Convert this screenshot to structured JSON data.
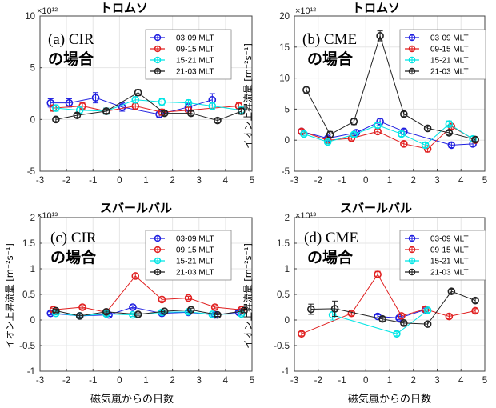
{
  "figure": {
    "xlabel": "磁気嵐からの日数",
    "ylabel": "イオン上昇流量 [m⁻²s⁻¹]",
    "legend": [
      "03-09 MLT",
      "09-15 MLT",
      "15-21 MLT",
      "21-03 MLT"
    ],
    "colors": [
      "#1f1fe0",
      "#e02020",
      "#00e5e5",
      "#222222"
    ]
  },
  "chart_data": [
    {
      "type": "line",
      "title": "トロムソ",
      "label": "(a) CIR",
      "sublabel": "の場合",
      "exponent": "×10¹²",
      "xlim": [
        -3,
        5
      ],
      "ylim": [
        -5,
        10
      ],
      "xticks": [
        -3,
        -2,
        -1,
        0,
        1,
        2,
        3,
        4,
        5
      ],
      "yticks": [
        -5,
        0,
        5,
        10
      ],
      "series": [
        {
          "name": "03-09 MLT",
          "points": [
            [
              -2.6,
              1.6
            ],
            [
              -1.9,
              1.6
            ],
            [
              -0.9,
              2.1
            ],
            [
              0.1,
              1.2
            ],
            [
              1.5,
              0.5
            ],
            [
              2.6,
              1.2
            ],
            [
              3.5,
              1.9
            ]
          ],
          "err": [
            0.4,
            0.4,
            0.5,
            0.4,
            0.3,
            0.4,
            0.6
          ]
        },
        {
          "name": "09-15 MLT",
          "points": [
            [
              -2.5,
              1.1
            ],
            [
              -1.4,
              1.3
            ],
            [
              -0.5,
              0.8
            ],
            [
              0.6,
              1.3
            ],
            [
              1.6,
              0.7
            ],
            [
              2.6,
              0.9
            ],
            [
              4.5,
              1.3
            ]
          ],
          "err": [
            0.3,
            0.3,
            0.3,
            0.3,
            0.3,
            0.3,
            0.3
          ]
        },
        {
          "name": "15-21 MLT",
          "points": [
            [
              -2.4,
              1.1
            ],
            [
              -1.5,
              0.9
            ],
            [
              -0.5,
              0.8
            ],
            [
              0.6,
              1.9
            ],
            [
              1.6,
              1.7
            ],
            [
              2.6,
              1.6
            ],
            [
              3.5,
              1.3
            ],
            [
              4.6,
              0.9
            ]
          ],
          "err": [
            0.3,
            0.3,
            0.3,
            0.3,
            0.3,
            0.3,
            0.3,
            0.3
          ]
        },
        {
          "name": "21-03 MLT",
          "points": [
            [
              -2.4,
              0.0
            ],
            [
              -1.6,
              0.4
            ],
            [
              -0.5,
              0.8
            ],
            [
              0.7,
              2.6
            ],
            [
              1.7,
              0.6
            ],
            [
              2.7,
              0.6
            ],
            [
              3.7,
              -0.1
            ],
            [
              4.6,
              0.8
            ]
          ],
          "err": [
            0.2,
            0.2,
            0.2,
            0.3,
            0.2,
            0.2,
            0.2,
            0.3
          ]
        }
      ]
    },
    {
      "type": "line",
      "title": "トロムソ",
      "label": "(b) CME",
      "sublabel": "の場合",
      "exponent": "×10¹²",
      "xlim": [
        -3,
        5
      ],
      "ylim": [
        -5,
        20
      ],
      "xticks": [
        -3,
        -2,
        -1,
        0,
        1,
        2,
        3,
        4,
        5
      ],
      "yticks": [
        -5,
        0,
        5,
        10,
        15,
        20
      ],
      "series": [
        {
          "name": "03-09 MLT",
          "points": [
            [
              -2.7,
              1.4
            ],
            [
              -1.6,
              0.3
            ],
            [
              -0.4,
              1.2
            ],
            [
              0.6,
              3.0
            ],
            [
              1.6,
              1.4
            ],
            [
              3.6,
              -0.8
            ],
            [
              4.5,
              -0.6
            ]
          ],
          "err": [
            0.3,
            0.3,
            0.4,
            0.5,
            0.4,
            0.4,
            0.4
          ]
        },
        {
          "name": "09-15 MLT",
          "points": [
            [
              -2.7,
              1.4
            ],
            [
              -1.6,
              0.0
            ],
            [
              -0.6,
              0.3
            ],
            [
              0.5,
              1.4
            ],
            [
              1.6,
              -0.6
            ],
            [
              2.6,
              -1.4
            ],
            [
              3.6,
              2.2
            ],
            [
              4.6,
              0.0
            ]
          ],
          "err": [
            0.3,
            0.3,
            0.3,
            0.4,
            0.4,
            0.5,
            0.4,
            0.4
          ]
        },
        {
          "name": "15-21 MLT",
          "points": [
            [
              -2.6,
              1.0
            ],
            [
              -1.6,
              -0.3
            ],
            [
              -0.5,
              0.9
            ],
            [
              0.5,
              2.4
            ],
            [
              1.5,
              1.0
            ],
            [
              2.5,
              -0.8
            ],
            [
              3.5,
              2.6
            ],
            [
              4.5,
              0.2
            ]
          ],
          "err": [
            0.3,
            0.3,
            0.3,
            0.4,
            0.4,
            0.4,
            0.5,
            0.4
          ]
        },
        {
          "name": "21-03 MLT",
          "points": [
            [
              -2.5,
              8.1
            ],
            [
              -1.5,
              0.9
            ],
            [
              -0.5,
              3.0
            ],
            [
              0.6,
              16.8
            ],
            [
              1.6,
              4.2
            ],
            [
              2.6,
              1.9
            ],
            [
              3.5,
              1.2
            ],
            [
              4.6,
              0.1
            ]
          ],
          "err": [
            0.6,
            0.5,
            0.5,
            0.8,
            0.4,
            0.3,
            0.3,
            0.3
          ]
        }
      ]
    },
    {
      "type": "line",
      "title": "スバールバル",
      "label": "(c) CIR",
      "sublabel": "の場合",
      "exponent": "×10¹³",
      "xlim": [
        -3,
        5
      ],
      "ylim": [
        -1,
        2
      ],
      "xticks": [
        -3,
        -2,
        -1,
        0,
        1,
        2,
        3,
        4,
        5
      ],
      "yticks": [
        -1,
        -0.5,
        0,
        0.5,
        1,
        1.5,
        2
      ],
      "series": [
        {
          "name": "03-09 MLT",
          "points": [
            [
              -2.6,
              0.13
            ],
            [
              -1.5,
              0.08
            ],
            [
              -0.4,
              0.1
            ],
            [
              0.5,
              0.25
            ],
            [
              1.6,
              0.13
            ],
            [
              2.6,
              0.15
            ],
            [
              3.6,
              0.1
            ],
            [
              4.5,
              0.15
            ]
          ],
          "err": [
            0.03,
            0.03,
            0.03,
            0.03,
            0.03,
            0.03,
            0.03,
            0.03
          ]
        },
        {
          "name": "09-15 MLT",
          "points": [
            [
              -2.5,
              0.2
            ],
            [
              -1.4,
              0.25
            ],
            [
              -0.5,
              0.15
            ],
            [
              0.6,
              0.86
            ],
            [
              1.6,
              0.4
            ],
            [
              2.6,
              0.43
            ],
            [
              3.6,
              0.25
            ],
            [
              4.6,
              0.2
            ]
          ],
          "err": [
            0.03,
            0.03,
            0.03,
            0.04,
            0.03,
            0.03,
            0.03,
            0.03
          ]
        },
        {
          "name": "15-21 MLT",
          "points": [
            [
              -2.4,
              0.13
            ],
            [
              -1.5,
              0.08
            ],
            [
              -0.5,
              0.12
            ],
            [
              0.5,
              0.1
            ],
            [
              1.6,
              0.15
            ],
            [
              2.6,
              0.16
            ],
            [
              3.5,
              0.11
            ],
            [
              4.6,
              0.12
            ]
          ],
          "err": [
            0.03,
            0.03,
            0.03,
            0.03,
            0.03,
            0.03,
            0.03,
            0.03
          ]
        },
        {
          "name": "21-03 MLT",
          "points": [
            [
              -2.4,
              0.18
            ],
            [
              -1.5,
              0.08
            ],
            [
              -0.5,
              0.16
            ],
            [
              0.7,
              0.11
            ],
            [
              1.7,
              0.17
            ],
            [
              2.7,
              0.2
            ],
            [
              3.7,
              0.1
            ],
            [
              4.7,
              0.18
            ]
          ],
          "err": [
            0.03,
            0.03,
            0.03,
            0.03,
            0.03,
            0.03,
            0.03,
            0.03
          ]
        }
      ]
    },
    {
      "type": "line",
      "title": "スバールバル",
      "label": "(d) CME",
      "sublabel": "の場合",
      "exponent": "×10¹³",
      "xlim": [
        -3,
        5
      ],
      "ylim": [
        -1,
        2
      ],
      "xticks": [
        -3,
        -2,
        -1,
        0,
        1,
        2,
        3,
        4,
        5
      ],
      "yticks": [
        -1,
        -0.5,
        0,
        0.5,
        1,
        1.5,
        2
      ],
      "series": [
        {
          "name": "03-09 MLT",
          "points": [
            [
              0.5,
              0.07
            ],
            [
              1.4,
              0.04
            ],
            [
              2.5,
              0.2
            ]
          ],
          "err": [
            0.03,
            0.03,
            0.03
          ]
        },
        {
          "name": "09-15 MLT",
          "points": [
            [
              -2.7,
              -0.27
            ],
            [
              -0.6,
              0.13
            ],
            [
              0.5,
              0.89
            ],
            [
              1.5,
              0.08
            ],
            [
              2.5,
              0.21
            ],
            [
              3.5,
              0.07
            ],
            [
              4.6,
              0.18
            ]
          ],
          "err": [
            0.04,
            0.04,
            0.06,
            0.04,
            0.04,
            0.04,
            0.04
          ]
        },
        {
          "name": "15-21 MLT",
          "points": [
            [
              -1.4,
              0.1
            ],
            [
              1.3,
              -0.27
            ],
            [
              2.6,
              0.19
            ]
          ],
          "err": [
            0.1,
            0.04,
            0.04
          ]
        },
        {
          "name": "21-03 MLT",
          "points": [
            [
              -2.3,
              0.21
            ],
            [
              -1.3,
              0.22
            ],
            [
              0.7,
              0.02
            ],
            [
              1.6,
              -0.06
            ],
            [
              2.6,
              -0.08
            ],
            [
              3.6,
              0.56
            ],
            [
              4.6,
              0.38
            ]
          ],
          "err": [
            0.1,
            0.15,
            0.04,
            0.04,
            0.04,
            0.04,
            0.04
          ]
        }
      ]
    }
  ]
}
